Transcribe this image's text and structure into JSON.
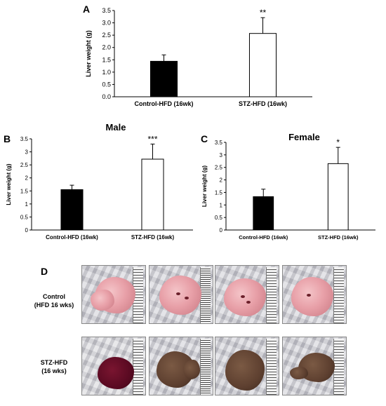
{
  "chart_data": [
    {
      "type": "bar",
      "panel_label": "A",
      "title": "",
      "categories": [
        "Control-HFD (16wk)",
        "STZ-HFD (16wk)"
      ],
      "values": [
        1.44,
        2.57
      ],
      "errors": [
        0.26,
        0.64
      ],
      "significance": [
        "",
        "**"
      ],
      "colors": [
        "#000000",
        "#ffffff"
      ],
      "xlabel": "",
      "ylabel": "Liver weight (g)",
      "ylim": [
        0,
        3.5
      ],
      "yticks": [
        "0.0",
        "0.5",
        "1.0",
        "1.5",
        "2.0",
        "2.5",
        "3.0",
        "3.5"
      ],
      "grid": false
    },
    {
      "type": "bar",
      "panel_label": "B",
      "title": "Male",
      "categories": [
        "Control-HFD (16wk)",
        "STZ-HFD (16wk)"
      ],
      "values": [
        1.55,
        2.72
      ],
      "errors": [
        0.17,
        0.58
      ],
      "significance": [
        "",
        "***"
      ],
      "colors": [
        "#000000",
        "#ffffff"
      ],
      "xlabel": "",
      "ylabel": "Liver weight (g)",
      "ylim": [
        0,
        3.5
      ],
      "yticks": [
        "0",
        "0.5",
        "1",
        "1.5",
        "2",
        "2.5",
        "3",
        "3.5"
      ],
      "grid": false
    },
    {
      "type": "bar",
      "panel_label": "C",
      "title": "Female",
      "categories": [
        "Control-HFD (16wk)",
        "STZ-HFD (16wk)"
      ],
      "values": [
        1.33,
        2.65
      ],
      "errors": [
        0.3,
        0.65
      ],
      "significance": [
        "",
        "*"
      ],
      "colors": [
        "#000000",
        "#ffffff"
      ],
      "xlabel": "",
      "ylabel": "Liver weight (g)",
      "ylim": [
        0,
        3.5
      ],
      "yticks": [
        "0",
        "0.5",
        "1",
        "1.5",
        "2",
        "2.5",
        "3",
        "3.5"
      ],
      "grid": false
    }
  ],
  "panel_d": {
    "panel_label": "D",
    "rows": [
      {
        "label": "Control\n(HFD 16 wks)",
        "group": "control"
      },
      {
        "label": "STZ-HFD\n(16 wks)",
        "group": "stz"
      }
    ]
  }
}
